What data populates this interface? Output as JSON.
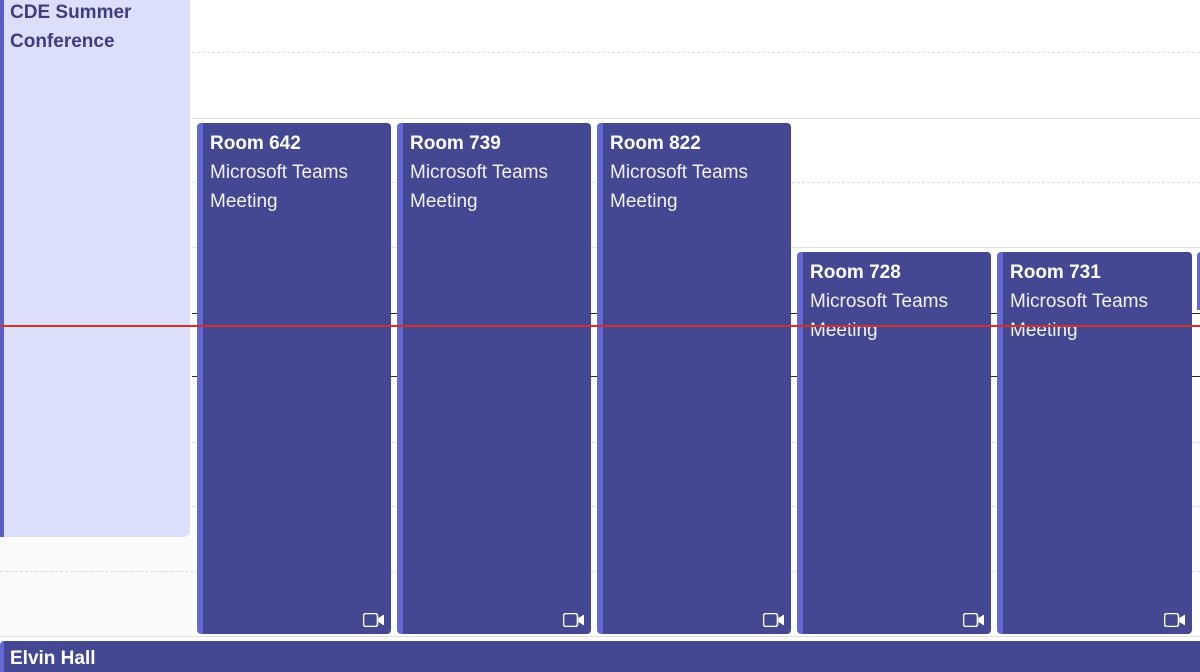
{
  "banner": {
    "title_line1": "CDE Summer",
    "title_line2": "Conference"
  },
  "events": [
    {
      "title": "Room 642",
      "subtitle_line1": "Microsoft Teams",
      "subtitle_line2": "Meeting",
      "icon": "video-camera-icon"
    },
    {
      "title": "Room 739",
      "subtitle_line1": "Microsoft Teams",
      "subtitle_line2": "Meeting",
      "icon": "video-camera-icon"
    },
    {
      "title": "Room 822",
      "subtitle_line1": "Microsoft Teams",
      "subtitle_line2": "Meeting",
      "icon": "video-camera-icon"
    },
    {
      "title": "Room 728",
      "subtitle_line1": "Microsoft Teams",
      "subtitle_line2": "Meeting",
      "icon": "video-camera-icon"
    },
    {
      "title": "Room 731",
      "subtitle_line1": "Microsoft Teams",
      "subtitle_line2": "Meeting",
      "icon": "video-camera-icon"
    }
  ],
  "bottom_event": {
    "title": "Elvin Hall"
  },
  "colors": {
    "event_fill": "#444791",
    "event_accent": "#6468d4",
    "banner_fill": "#dcdff9",
    "current_time_line": "#d93025"
  }
}
